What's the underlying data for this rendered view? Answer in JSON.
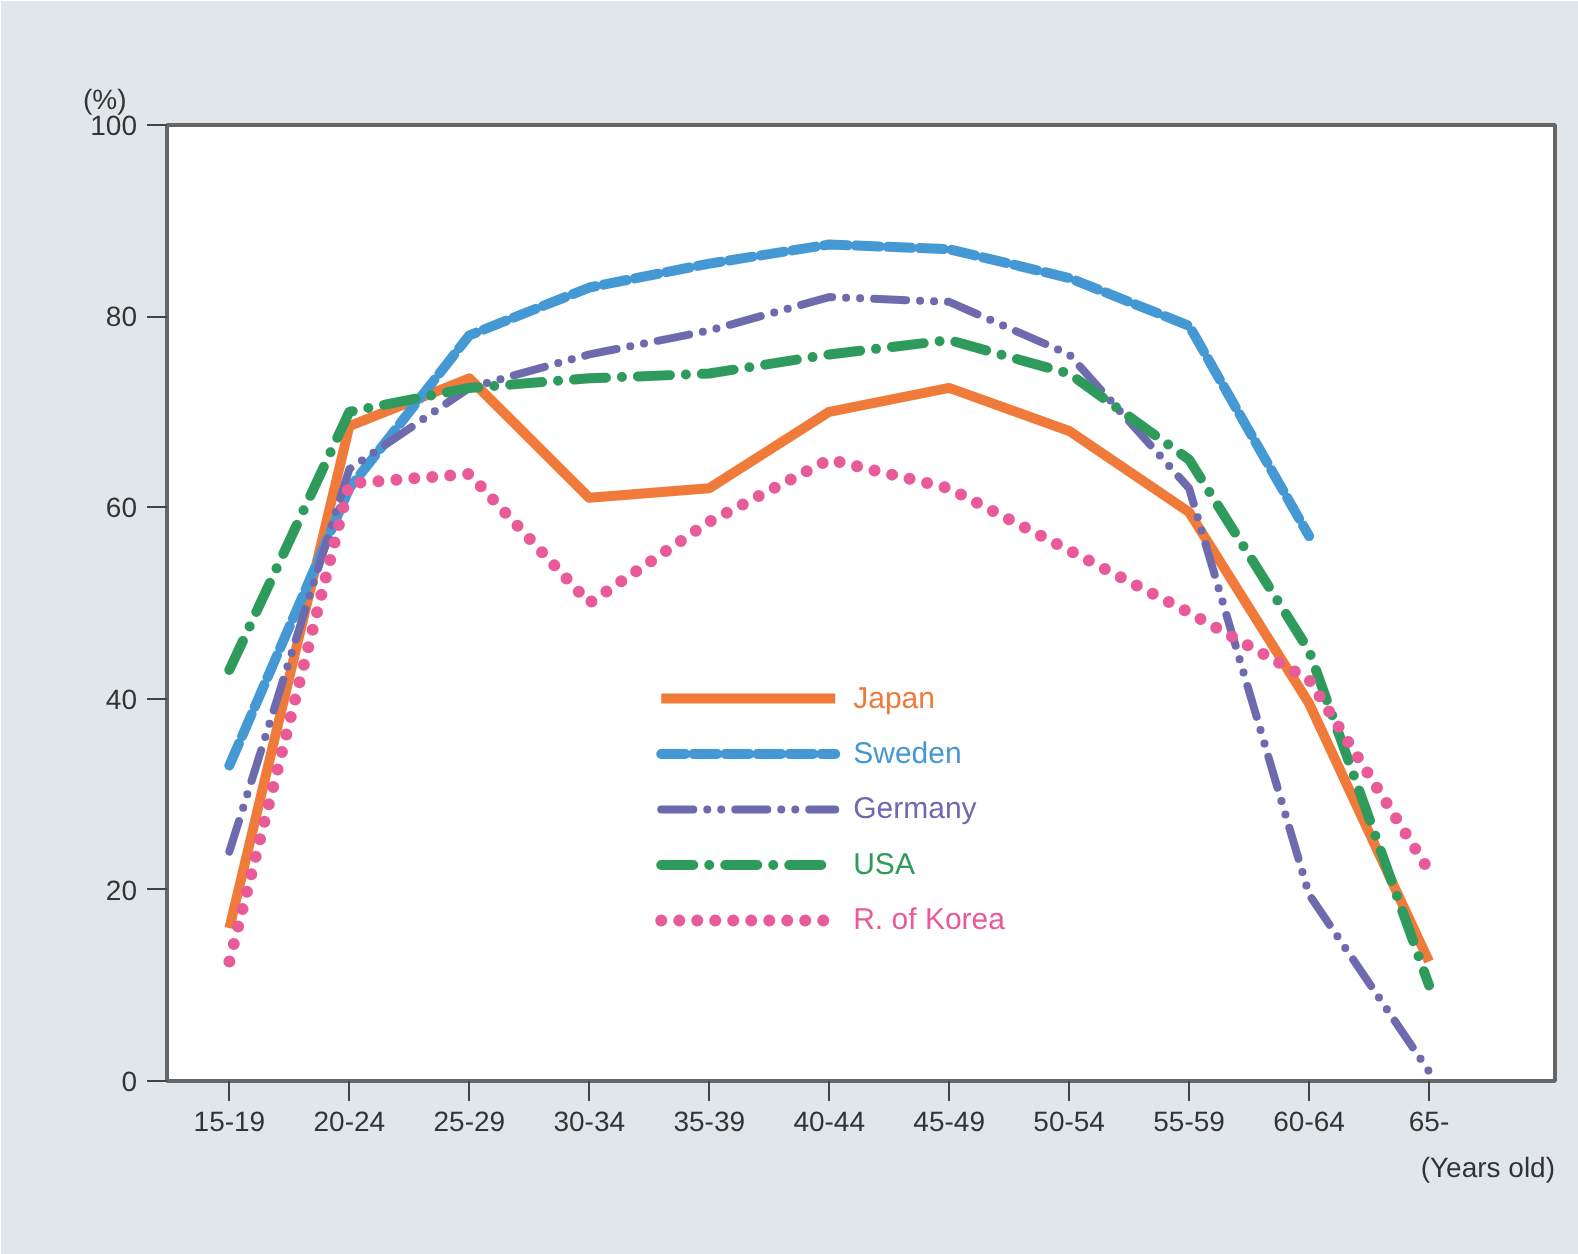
{
  "chart_data": {
    "type": "line",
    "xlabel": "(Years old)",
    "ylabel": "(%)",
    "categories": [
      "15-19",
      "20-24",
      "25-29",
      "30-34",
      "35-39",
      "40-44",
      "45-49",
      "50-54",
      "55-59",
      "60-64",
      "65-"
    ],
    "ylim": [
      0,
      100
    ],
    "yticks": [
      0,
      20,
      40,
      60,
      80,
      100
    ],
    "grid": false,
    "legend": "center",
    "marker": "none",
    "series": [
      {
        "name": "Japan",
        "color": "#f07a3a",
        "line_style": "solid",
        "values": [
          16,
          68.5,
          73.5,
          61,
          62,
          70,
          72.5,
          68,
          59.5,
          39.5,
          12.5
        ]
      },
      {
        "name": "Sweden",
        "color": "#4499d4",
        "line_style": "dashed",
        "values": [
          33,
          62,
          78,
          83,
          85.5,
          87.5,
          87,
          84,
          79,
          57,
          null
        ]
      },
      {
        "name": "Germany",
        "color": "#6e6aae",
        "line_style": "dashdotdot",
        "values": [
          24,
          64,
          72.5,
          76,
          78.5,
          82,
          81.5,
          76,
          62,
          19.5,
          1
        ]
      },
      {
        "name": "USA",
        "color": "#2e9a5c",
        "line_style": "dashdot",
        "values": [
          43,
          70,
          72.5,
          73.5,
          74,
          76,
          77.5,
          74,
          65,
          45,
          10
        ]
      },
      {
        "name": "R. of Korea",
        "color": "#e85a98",
        "line_style": "dotted",
        "values": [
          12.5,
          62.5,
          63.5,
          50,
          58.5,
          65,
          62,
          55.5,
          49,
          42,
          22
        ]
      }
    ]
  }
}
